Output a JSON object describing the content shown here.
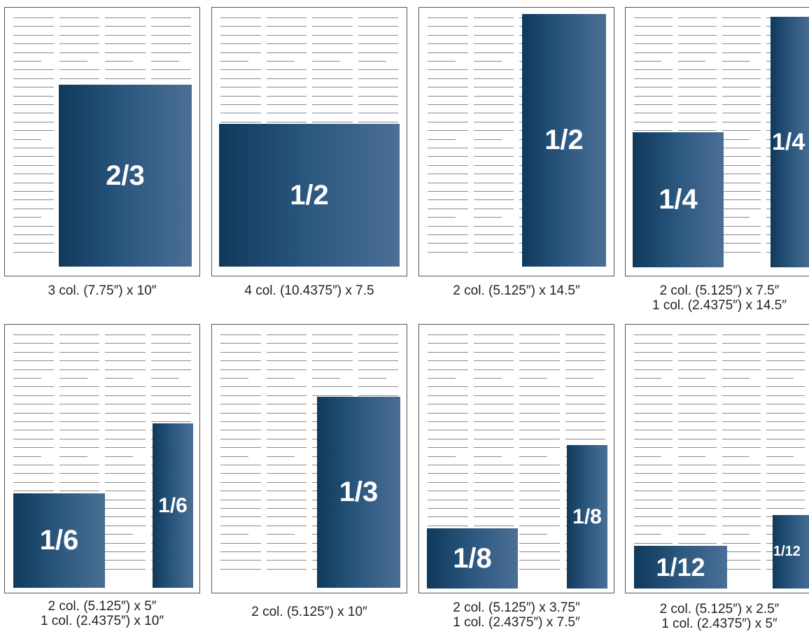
{
  "layouts": [
    {
      "label": "2/3",
      "captions": [
        "3 col. (7.75″) x 10″"
      ]
    },
    {
      "label": "1/2",
      "captions": [
        "4 col. (10.4375″) x 7.5"
      ]
    },
    {
      "label": "1/2",
      "captions": [
        "2 col. (5.125″) x 14.5″"
      ]
    },
    {
      "labels": [
        "1/4",
        "1/4"
      ],
      "captions": [
        "2 col. (5.125″) x 7.5″",
        "1 col. (2.4375″) x 14.5″"
      ]
    },
    {
      "labels": [
        "1/6",
        "1/6"
      ],
      "captions": [
        "2 col. (5.125″) x 5″",
        "1 col. (2.4375″) x 10″"
      ]
    },
    {
      "label": "1/3",
      "captions": [
        "2 col. (5.125″) x 10″"
      ]
    },
    {
      "labels": [
        "1/8",
        "1/8"
      ],
      "captions": [
        "2 col. (5.125″) x 3.75″",
        "1 col. (2.4375″) x 7.5″"
      ]
    },
    {
      "labels": [
        "1/12",
        "1/12"
      ],
      "captions": [
        "2 col. (5.125″) x 2.5″",
        "1 col. (2.4375″) x 5″"
      ]
    }
  ],
  "colors": {
    "block": "#1f4a70",
    "rule": "#8a8a8a",
    "border": "#555555"
  }
}
